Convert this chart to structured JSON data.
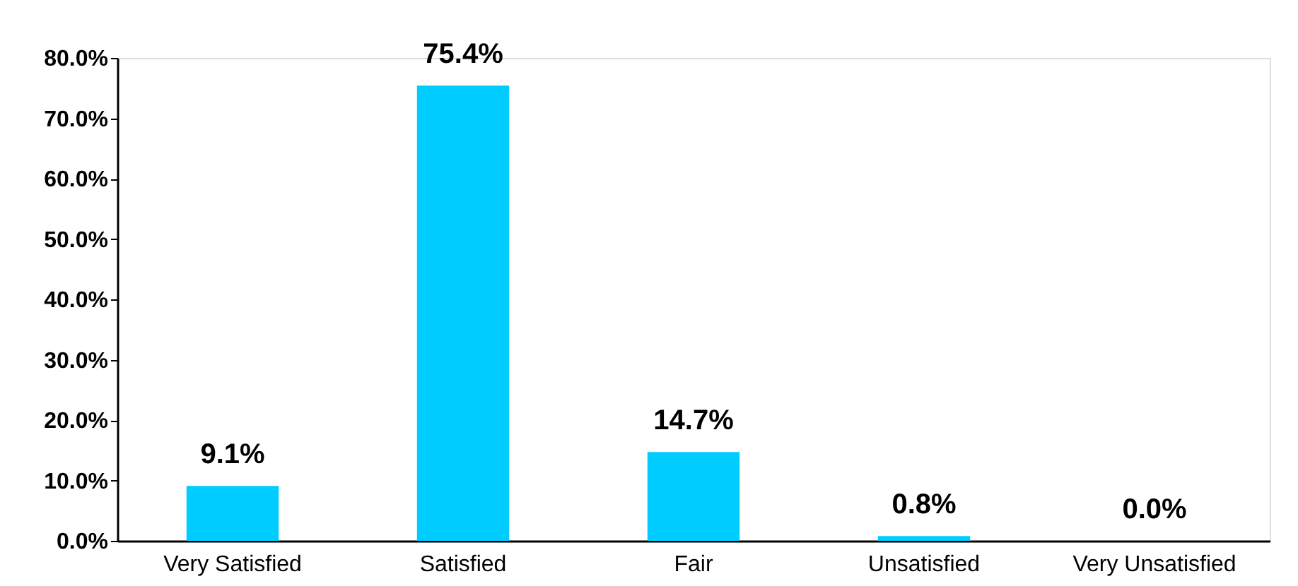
{
  "chart_data": {
    "type": "bar",
    "categories": [
      "Very Satisfied",
      "Satisfied",
      "Fair",
      "Unsatisfied",
      "Very Unsatisfied"
    ],
    "values": [
      9.1,
      75.4,
      14.7,
      0.8,
      0.0
    ],
    "value_labels": [
      "9.1%",
      "75.4%",
      "14.7%",
      "0.8%",
      "0.0%"
    ],
    "color": "#00ccff",
    "ylim": [
      0,
      80
    ],
    "yticks": [
      {
        "value": 0,
        "label": "0.0%"
      },
      {
        "value": 10,
        "label": "10.0%"
      },
      {
        "value": 20,
        "label": "20.0%"
      },
      {
        "value": 30,
        "label": "30.0%"
      },
      {
        "value": 40,
        "label": "40.0%"
      },
      {
        "value": 50,
        "label": "50.0%"
      },
      {
        "value": 60,
        "label": "60.0%"
      },
      {
        "value": 70,
        "label": "70.0%"
      },
      {
        "value": 80,
        "label": "80.0%"
      }
    ],
    "grid": false
  }
}
